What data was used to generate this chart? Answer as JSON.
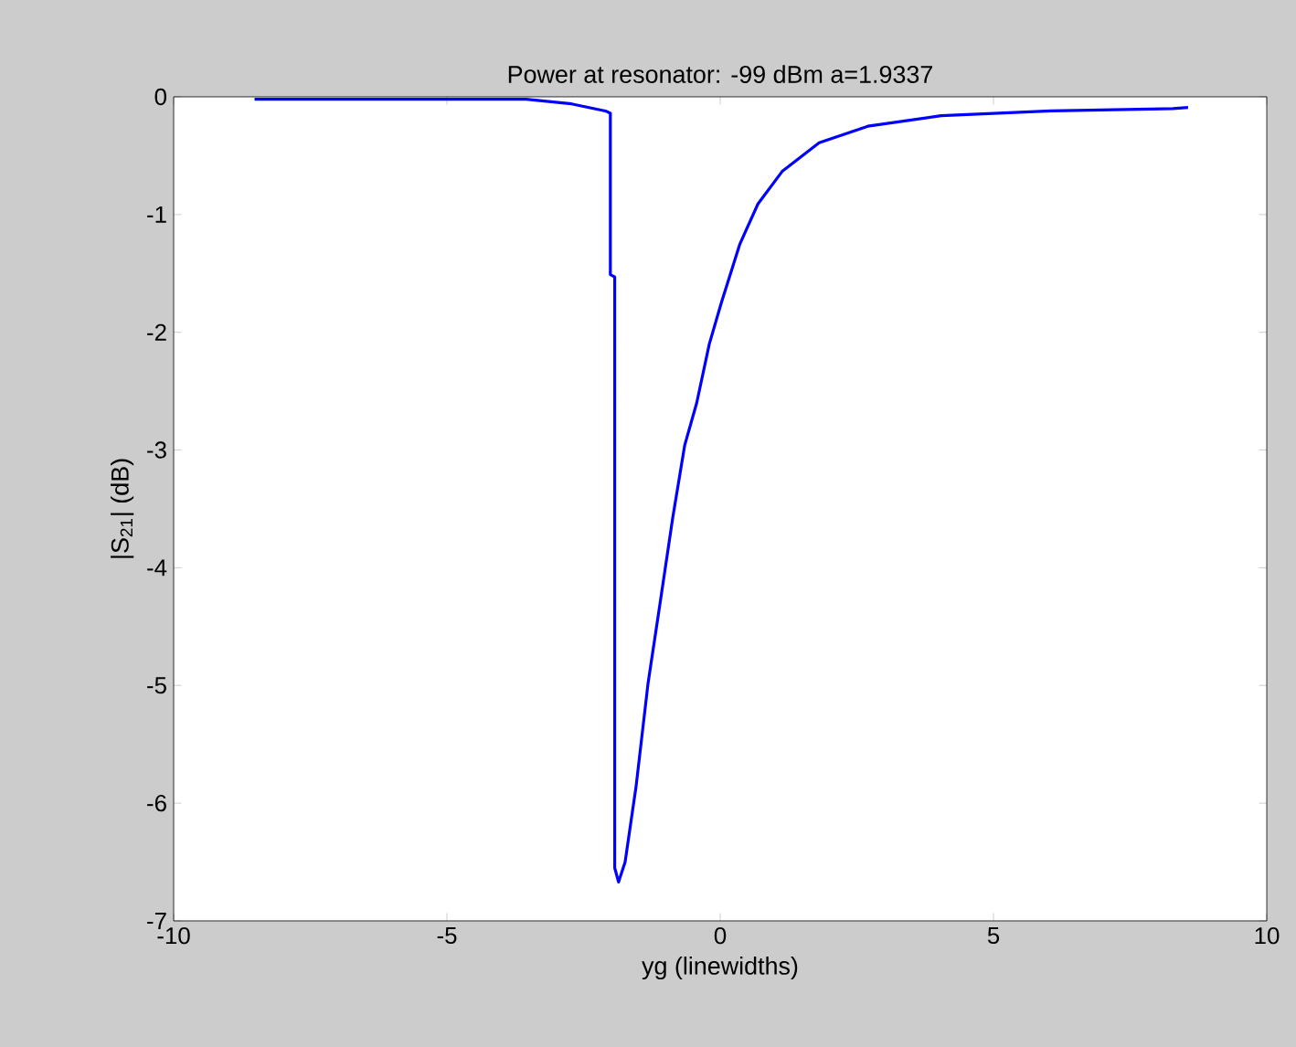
{
  "chart_data": {
    "type": "line",
    "title": "Power at resonator: -99 dBm a=1.9337",
    "xlabel": "yg (linewidths)",
    "ylabel": "|S$_{21}$| (dB)",
    "xlim": [
      -10,
      10
    ],
    "ylim": [
      -7,
      0
    ],
    "xticks": [
      -10,
      -5,
      0,
      5,
      10
    ],
    "yticks": [
      -7,
      -6,
      -5,
      -4,
      -3,
      -2,
      -1,
      0
    ],
    "series": [
      {
        "color": "#0000ff",
        "x": [
          -8.52,
          -3.55,
          -2.72,
          -2.1,
          -2.01,
          -2.01,
          -1.93,
          -1.93,
          -1.86,
          -1.74,
          -1.54,
          -1.32,
          -1.1,
          -0.87,
          -0.65,
          -0.43,
          -0.2,
          0.02,
          0.36,
          0.69,
          1.14,
          1.81,
          2.7,
          4.04,
          6.05,
          8.28,
          8.56
        ],
        "values": [
          -0.02,
          -0.02,
          -0.06,
          -0.12,
          -0.14,
          -1.51,
          -1.53,
          -6.55,
          -6.67,
          -6.5,
          -5.86,
          -4.98,
          -4.3,
          -3.58,
          -2.96,
          -2.6,
          -2.1,
          -1.75,
          -1.25,
          -0.91,
          -0.63,
          -0.39,
          -0.25,
          -0.16,
          -0.12,
          -0.1,
          -0.09
        ]
      }
    ]
  }
}
